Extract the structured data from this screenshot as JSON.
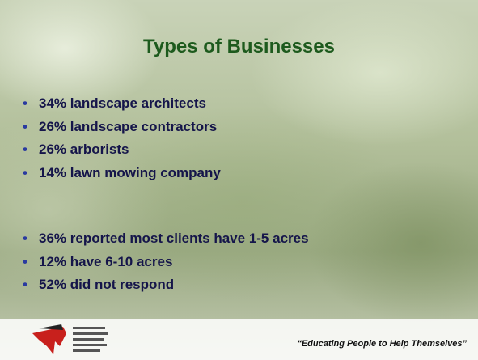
{
  "slide": {
    "title": "Types of Businesses",
    "bullets_1": [
      "34% landscape architects",
      "26% landscape contractors",
      "26% arborists",
      "14% lawn mowing company"
    ],
    "bullets_2": [
      "36% reported most clients have 1-5 acres",
      "12% have 6-10 acres",
      "52% did not respond"
    ],
    "footer": "“Educating People to Help Themselves”"
  }
}
